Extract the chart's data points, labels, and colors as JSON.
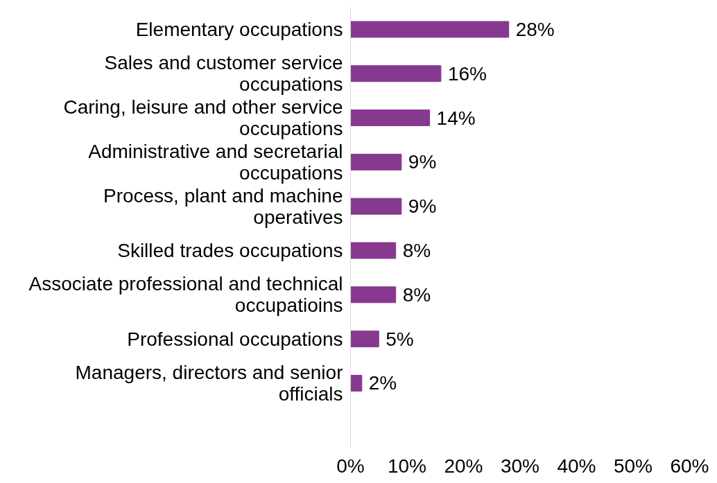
{
  "chart_data": {
    "type": "bar",
    "orientation": "horizontal",
    "categories": [
      "Elementary occupations",
      "Sales and customer service occupations",
      "Caring, leisure and other service occupations",
      "Administrative and secretarial occupations",
      "Process, plant and machine operatives",
      "Skilled trades occupations",
      "Associate professional and technical occupatioins",
      "Professional occupations",
      "Managers, directors and senior officials"
    ],
    "values": [
      28,
      16,
      14,
      9,
      9,
      8,
      8,
      5,
      2
    ],
    "value_labels": [
      "28%",
      "16%",
      "14%",
      "9%",
      "9%",
      "8%",
      "8%",
      "5%",
      "2%"
    ],
    "color": "#86398f",
    "xlim": [
      0,
      60
    ],
    "xticks": [
      {
        "value": 0,
        "label": "0%"
      },
      {
        "value": 10,
        "label": "10%"
      },
      {
        "value": 20,
        "label": "20%"
      },
      {
        "value": 30,
        "label": "30%"
      },
      {
        "value": 40,
        "label": "40%"
      },
      {
        "value": 50,
        "label": "50%"
      },
      {
        "value": 60,
        "label": "60%"
      }
    ],
    "grid": false
  }
}
